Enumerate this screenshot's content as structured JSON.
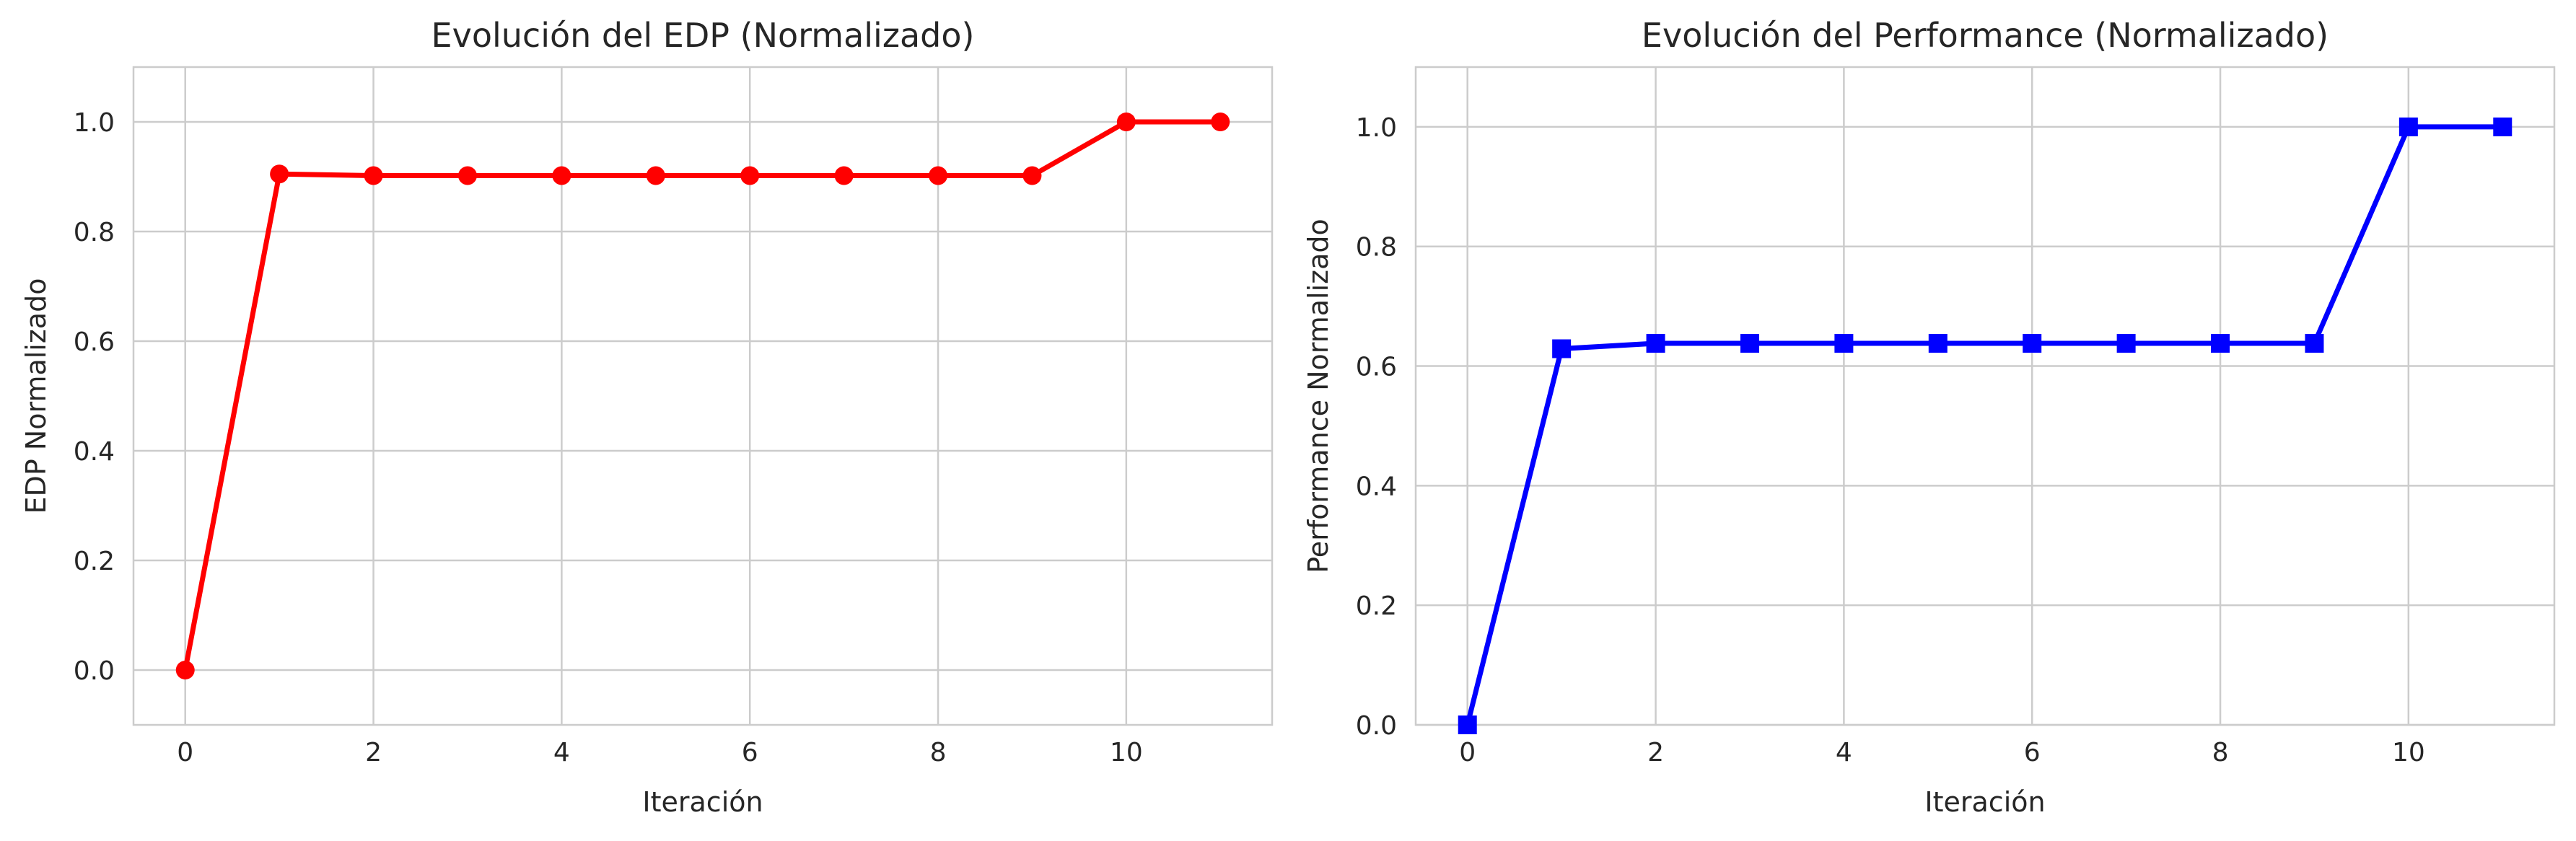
{
  "chart_data": [
    {
      "type": "line",
      "title": "Evolución del EDP (Normalizado)",
      "xlabel": "Iteración",
      "ylabel": "EDP Normalizado",
      "xlim": [
        -0.55,
        11.55
      ],
      "ylim": [
        -0.1,
        1.1
      ],
      "xticks": [
        0,
        2,
        4,
        6,
        8,
        10
      ],
      "xtick_labels": [
        "0",
        "2",
        "4",
        "6",
        "8",
        "10"
      ],
      "yticks": [
        0.0,
        0.2,
        0.4,
        0.6,
        0.8,
        1.0
      ],
      "ytick_labels": [
        "0.0",
        "0.2",
        "0.4",
        "0.6",
        "0.8",
        "1.0"
      ],
      "grid": true,
      "series": [
        {
          "color": "#ff0000",
          "marker": "circle",
          "x": [
            0,
            1,
            2,
            3,
            4,
            5,
            6,
            7,
            8,
            9,
            10,
            11
          ],
          "y": [
            0.0,
            0.905,
            0.902,
            0.902,
            0.902,
            0.902,
            0.902,
            0.902,
            0.902,
            0.902,
            1.0,
            1.0
          ]
        }
      ]
    },
    {
      "type": "line",
      "title": "Evolución del Performance (Normalizado)",
      "xlabel": "Iteración",
      "ylabel": "Performance Normalizado",
      "xlim": [
        -0.55,
        11.55
      ],
      "ylim": [
        0.0,
        1.1
      ],
      "xticks": [
        0,
        2,
        4,
        6,
        8,
        10
      ],
      "xtick_labels": [
        "0",
        "2",
        "4",
        "6",
        "8",
        "10"
      ],
      "yticks": [
        0.0,
        0.2,
        0.4,
        0.6,
        0.8,
        1.0
      ],
      "ytick_labels": [
        "0.0",
        "0.2",
        "0.4",
        "0.6",
        "0.8",
        "1.0"
      ],
      "grid": true,
      "series": [
        {
          "color": "#0000ff",
          "marker": "square",
          "x": [
            0,
            1,
            2,
            3,
            4,
            5,
            6,
            7,
            8,
            9,
            10,
            11
          ],
          "y": [
            0.0,
            0.629,
            0.638,
            0.638,
            0.638,
            0.638,
            0.638,
            0.638,
            0.638,
            0.638,
            1.0,
            1.0
          ]
        }
      ]
    }
  ]
}
